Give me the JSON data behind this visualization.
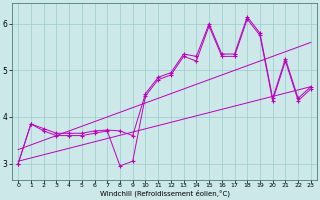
{
  "background_color": "#cce8e8",
  "line_color": "#bb00bb",
  "grid_color": "#99cccc",
  "spine_color": "#336666",
  "xlim": [
    -0.5,
    23.5
  ],
  "ylim": [
    2.65,
    6.45
  ],
  "xticks": [
    0,
    1,
    2,
    3,
    4,
    5,
    6,
    7,
    8,
    9,
    10,
    11,
    12,
    13,
    14,
    15,
    16,
    17,
    18,
    19,
    20,
    21,
    22,
    23
  ],
  "yticks": [
    3,
    4,
    5,
    6
  ],
  "xlabel": "Windchill (Refroidissement éolien,°C)",
  "hours": [
    0,
    1,
    2,
    3,
    4,
    5,
    6,
    7,
    8,
    9,
    10,
    11,
    12,
    13,
    14,
    15,
    16,
    17,
    18,
    19,
    20,
    21,
    22,
    23
  ],
  "line1": [
    3.0,
    3.85,
    3.7,
    3.6,
    3.6,
    3.6,
    3.65,
    3.7,
    2.95,
    3.05,
    4.45,
    4.8,
    4.9,
    5.3,
    5.2,
    5.95,
    5.3,
    5.3,
    6.1,
    5.75,
    4.35,
    5.2,
    4.35,
    4.6
  ],
  "line2": [
    3.0,
    3.85,
    3.75,
    3.65,
    3.65,
    3.65,
    3.7,
    3.72,
    3.7,
    3.6,
    4.5,
    4.85,
    4.95,
    5.35,
    5.3,
    6.0,
    5.35,
    5.35,
    6.15,
    5.8,
    4.4,
    5.25,
    4.4,
    4.65
  ],
  "trend1_x": [
    0,
    23
  ],
  "trend1_y": [
    3.05,
    4.65
  ],
  "trend2_x": [
    0,
    23
  ],
  "trend2_y": [
    3.3,
    5.6
  ]
}
